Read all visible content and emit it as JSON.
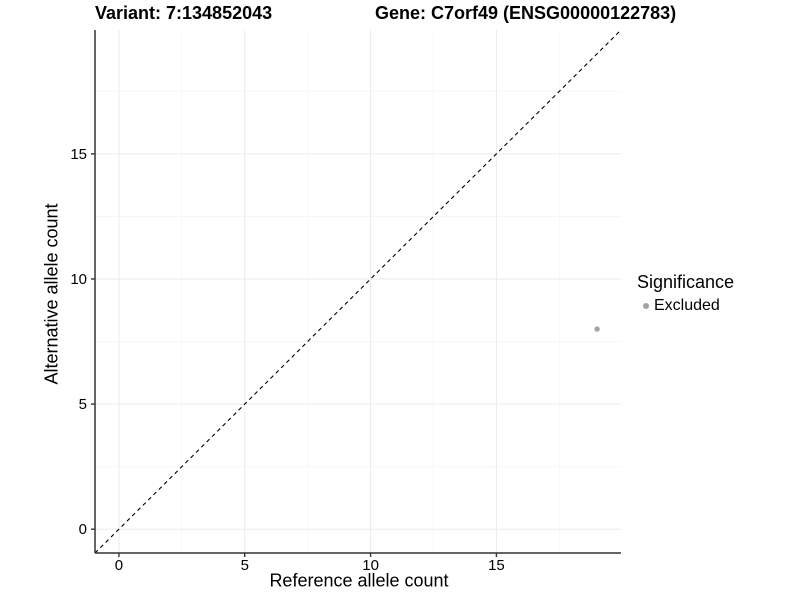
{
  "header": {
    "variant_title": "Variant: 7:134852043",
    "gene_title": "Gene: C7orf49 (ENSG00000122783)"
  },
  "chart_data": {
    "type": "scatter",
    "xlabel": "Reference allele count",
    "ylabel": "Alternative allele count",
    "xlim": [
      -0.95,
      19.95
    ],
    "ylim": [
      -0.95,
      19.95
    ],
    "x_major_ticks": [
      0,
      5,
      10,
      15
    ],
    "y_major_ticks": [
      0,
      5,
      10,
      15
    ],
    "x_minor_ticks": [
      2.5,
      7.5,
      12.5,
      17.5
    ],
    "y_minor_ticks": [
      2.5,
      7.5,
      12.5,
      17.5
    ],
    "points": [
      {
        "x": 19,
        "y": 8,
        "series": "Excluded"
      }
    ],
    "reference_line": {
      "kind": "identity",
      "slope": 1,
      "intercept": 0,
      "style": "dashed",
      "color": "#000000"
    },
    "legend": {
      "title": "Significance",
      "position": "right",
      "entries": [
        {
          "label": "Excluded",
          "color": "#a3a3a3"
        }
      ]
    },
    "style": {
      "grid_major_color": "#ebebeb",
      "grid_minor_color": "#f5f5f5",
      "axis_line_color": "#333333",
      "tick_color": "#333333",
      "text_color": "#000000",
      "point_color": "#a3a3a3",
      "point_radius": 2.7,
      "background": "#ffffff"
    }
  }
}
